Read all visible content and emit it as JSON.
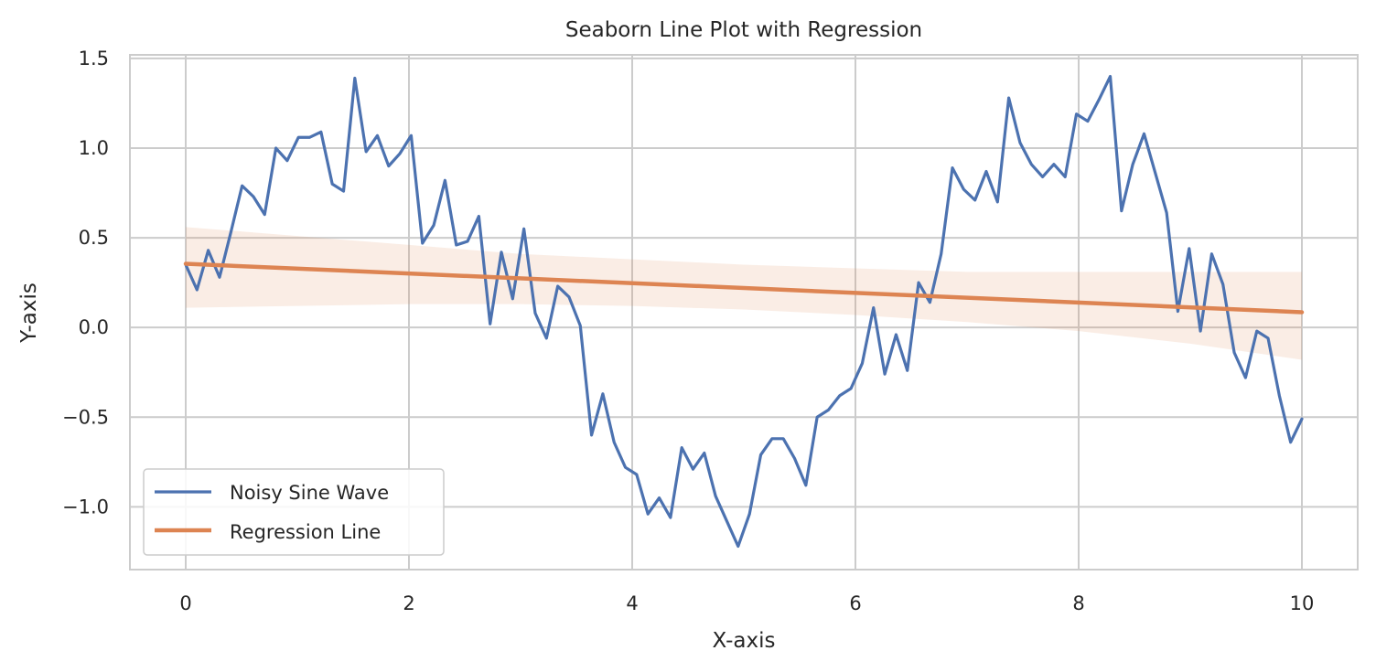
{
  "chart_data": {
    "type": "line",
    "title": "Seaborn Line Plot with Regression",
    "xlabel": "X-axis",
    "ylabel": "Y-axis",
    "xlim": [
      -0.5,
      10.5
    ],
    "ylim": [
      -1.35,
      1.52
    ],
    "x_ticks": [
      0,
      2,
      4,
      6,
      8,
      10
    ],
    "y_ticks": [
      -1.0,
      -0.5,
      0.0,
      0.5,
      1.0,
      1.5
    ],
    "x_tick_labels": [
      "0",
      "2",
      "4",
      "6",
      "8",
      "10"
    ],
    "y_tick_labels": [
      "−1.0",
      "−0.5",
      "0.0",
      "0.5",
      "1.0",
      "1.5"
    ],
    "grid": true,
    "legend_position": "lower-left",
    "series": [
      {
        "name": "Noisy Sine Wave",
        "color": "#4c72b0",
        "x": [
          0.0,
          0.101,
          0.202,
          0.303,
          0.404,
          0.505,
          0.606,
          0.707,
          0.808,
          0.909,
          1.01,
          1.111,
          1.212,
          1.313,
          1.414,
          1.515,
          1.616,
          1.717,
          1.818,
          1.919,
          2.02,
          2.121,
          2.222,
          2.323,
          2.424,
          2.525,
          2.626,
          2.727,
          2.828,
          2.929,
          3.03,
          3.131,
          3.232,
          3.333,
          3.434,
          3.535,
          3.636,
          3.737,
          3.838,
          3.939,
          4.04,
          4.141,
          4.242,
          4.343,
          4.444,
          4.545,
          4.646,
          4.747,
          4.848,
          4.949,
          5.051,
          5.152,
          5.253,
          5.354,
          5.455,
          5.556,
          5.657,
          5.758,
          5.859,
          5.96,
          6.061,
          6.162,
          6.263,
          6.364,
          6.465,
          6.566,
          6.667,
          6.768,
          6.869,
          6.97,
          7.071,
          7.172,
          7.273,
          7.374,
          7.475,
          7.576,
          7.677,
          7.778,
          7.879,
          7.98,
          8.081,
          8.182,
          8.283,
          8.384,
          8.485,
          8.586,
          8.687,
          8.788,
          8.889,
          8.99,
          9.091,
          9.192,
          9.293,
          9.394,
          9.495,
          9.596,
          9.697,
          9.798,
          9.899,
          10.0
        ],
        "values": [
          0.35,
          0.21,
          0.43,
          0.28,
          0.53,
          0.79,
          0.73,
          0.63,
          1.0,
          0.93,
          1.06,
          1.06,
          1.09,
          0.8,
          0.76,
          1.39,
          0.98,
          1.07,
          0.9,
          0.97,
          1.07,
          0.47,
          0.57,
          0.82,
          0.46,
          0.48,
          0.62,
          0.02,
          0.42,
          0.16,
          0.55,
          0.08,
          -0.06,
          0.23,
          0.17,
          0.01,
          -0.6,
          -0.37,
          -0.64,
          -0.78,
          -0.82,
          -1.04,
          -0.95,
          -1.06,
          -0.67,
          -0.79,
          -0.7,
          -0.94,
          -1.08,
          -1.22,
          -1.04,
          -0.71,
          -0.62,
          -0.62,
          -0.73,
          -0.88,
          -0.5,
          -0.46,
          -0.38,
          -0.34,
          -0.2,
          0.11,
          -0.26,
          -0.04,
          -0.24,
          0.25,
          0.14,
          0.41,
          0.89,
          0.77,
          0.71,
          0.87,
          0.7,
          1.28,
          1.03,
          0.91,
          0.84,
          0.91,
          0.84,
          1.19,
          1.15,
          1.27,
          1.4,
          0.65,
          0.91,
          1.08,
          0.86,
          0.64,
          0.09,
          0.44,
          -0.02,
          0.41,
          0.24,
          -0.14,
          -0.28,
          -0.02,
          -0.06,
          -0.38,
          -0.64,
          -0.51
        ]
      },
      {
        "name": "Regression Line",
        "color": "#dd8452",
        "x": [
          0,
          10
        ],
        "values": [
          0.355,
          0.085
        ]
      }
    ],
    "confidence_band": {
      "color": "#dd8452",
      "x": [
        0,
        1,
        2,
        3,
        4,
        5,
        6,
        7,
        8,
        9,
        10
      ],
      "upper": [
        0.56,
        0.51,
        0.46,
        0.41,
        0.38,
        0.35,
        0.33,
        0.31,
        0.31,
        0.31,
        0.31
      ],
      "lower": [
        0.11,
        0.12,
        0.13,
        0.13,
        0.12,
        0.1,
        0.07,
        0.03,
        -0.02,
        -0.09,
        -0.18
      ]
    }
  }
}
